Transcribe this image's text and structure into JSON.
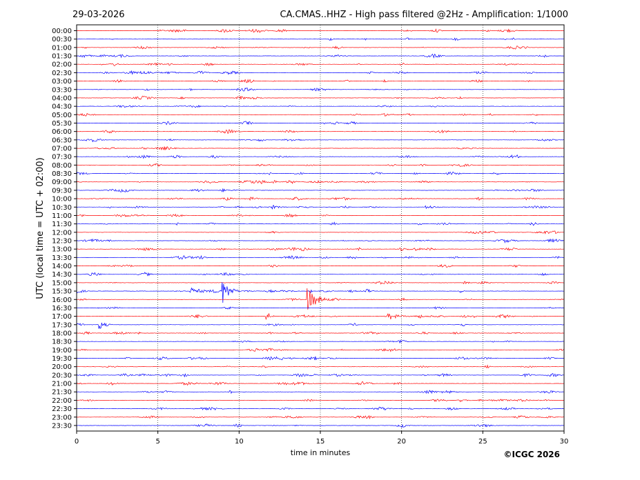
{
  "date_label": "29-03-2026",
  "title": "CA.CMAS..HHZ - High pass filtered @2Hz - Amplification: 1/1000",
  "copyright": "©ICGC 2026",
  "chart_data": {
    "type": "line",
    "title": "CA.CMAS..HHZ - High pass filtered @2Hz - Amplification: 1/1000",
    "xlabel": "time in minutes",
    "ylabel": "UTC (local time = UTC + 02:00)",
    "xlim": [
      0,
      30
    ],
    "x_ticks": [
      "0",
      "5",
      "10",
      "15",
      "20",
      "25",
      "30"
    ],
    "x_tick_values": [
      0,
      5,
      10,
      15,
      20,
      25,
      30
    ],
    "grid": "vertical dotted lines at 5-minute ticks",
    "trace_colors": {
      "odd_trace": "#0000ff",
      "even_trace": "#ff0000"
    },
    "rows": [
      "00:00",
      "00:30",
      "01:00",
      "01:30",
      "02:00",
      "02:30",
      "03:00",
      "03:30",
      "04:00",
      "04:30",
      "05:00",
      "05:30",
      "06:00",
      "06:30",
      "07:00",
      "07:30",
      "08:00",
      "08:30",
      "09:00",
      "09:30",
      "10:00",
      "10:30",
      "11:00",
      "11:30",
      "12:00",
      "12:30",
      "13:00",
      "13:30",
      "14:00",
      "14:30",
      "15:00",
      "15:30",
      "16:00",
      "16:30",
      "17:00",
      "17:30",
      "18:00",
      "18:30",
      "19:00",
      "19:30",
      "20:00",
      "20:30",
      "21:00",
      "21:30",
      "22:00",
      "22:30",
      "23:00",
      "23:30"
    ],
    "events": [
      {
        "row": "15:30",
        "minute": 9.0,
        "relative_amplitude": 1.0,
        "duration_min": 1.0
      },
      {
        "row": "16:00",
        "minute": 14.2,
        "relative_amplitude": 1.0,
        "duration_min": 1.4
      },
      {
        "row": "17:00",
        "minute": 11.7,
        "relative_amplitude": 0.45,
        "duration_min": 0.5
      },
      {
        "row": "17:00",
        "minute": 19.2,
        "relative_amplitude": 0.3,
        "duration_min": 1.5
      },
      {
        "row": "17:30",
        "minute": 1.4,
        "relative_amplitude": 0.4,
        "duration_min": 0.8
      },
      {
        "row": "15:30",
        "minute": 7.0,
        "relative_amplitude": 0.3,
        "duration_min": 2.0
      },
      {
        "row": "10:30",
        "minute": 12.0,
        "relative_amplitude": 0.2,
        "duration_min": 1.0
      },
      {
        "row": "10:30",
        "minute": 21.5,
        "relative_amplitude": 0.2,
        "duration_min": 1.2
      }
    ]
  }
}
